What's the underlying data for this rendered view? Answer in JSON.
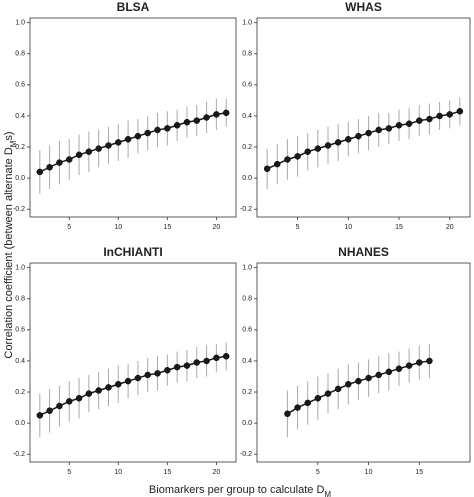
{
  "chart_data": [
    {
      "type": "line",
      "title": "BLSA",
      "x": [
        2,
        3,
        4,
        5,
        6,
        7,
        8,
        9,
        10,
        11,
        12,
        13,
        14,
        15,
        16,
        17,
        18,
        19,
        20,
        21
      ],
      "values": [
        0.04,
        0.07,
        0.1,
        0.12,
        0.15,
        0.17,
        0.19,
        0.21,
        0.23,
        0.25,
        0.27,
        0.29,
        0.31,
        0.32,
        0.34,
        0.36,
        0.37,
        0.39,
        0.41,
        0.42
      ],
      "errors": [
        0.14,
        0.14,
        0.14,
        0.13,
        0.13,
        0.13,
        0.12,
        0.12,
        0.12,
        0.12,
        0.11,
        0.11,
        0.11,
        0.11,
        0.1,
        0.1,
        0.1,
        0.1,
        0.1,
        0.09
      ],
      "color": "#1a1a1a",
      "error_color": "#aaaaaa",
      "xlim": [
        1,
        22
      ],
      "ylim": [
        -0.25,
        1.03
      ],
      "xticks": [
        5,
        10,
        15,
        20
      ],
      "yticks": [
        -0.2,
        {
          "value": 0,
          "label": "0.0"
        },
        0.2,
        0.4,
        0.6,
        0.8,
        {
          "value": 1,
          "label": "1.0"
        }
      ]
    },
    {
      "type": "line",
      "title": "WHAS",
      "x": [
        2,
        3,
        4,
        5,
        6,
        7,
        8,
        9,
        10,
        11,
        12,
        13,
        14,
        15,
        16,
        17,
        18,
        19,
        20,
        21
      ],
      "values": [
        0.06,
        0.09,
        0.12,
        0.14,
        0.17,
        0.19,
        0.21,
        0.23,
        0.25,
        0.27,
        0.29,
        0.31,
        0.32,
        0.34,
        0.35,
        0.37,
        0.38,
        0.4,
        0.41,
        0.43
      ],
      "errors": [
        0.13,
        0.13,
        0.13,
        0.13,
        0.12,
        0.12,
        0.12,
        0.12,
        0.11,
        0.11,
        0.11,
        0.11,
        0.1,
        0.1,
        0.1,
        0.1,
        0.1,
        0.09,
        0.09,
        0.09
      ],
      "color": "#1a1a1a",
      "error_color": "#aaaaaa",
      "xlim": [
        1,
        22
      ],
      "ylim": [
        -0.25,
        1.03
      ],
      "xticks": [
        5,
        10,
        15,
        20
      ],
      "yticks": [
        -0.2,
        {
          "value": 0,
          "label": "0.0"
        },
        0.2,
        0.4,
        0.6,
        0.8,
        {
          "value": 1,
          "label": "1.0"
        }
      ]
    },
    {
      "type": "line",
      "title": "InCHIANTI",
      "x": [
        2,
        3,
        4,
        5,
        6,
        7,
        8,
        9,
        10,
        11,
        12,
        13,
        14,
        15,
        16,
        17,
        18,
        19,
        20,
        21
      ],
      "values": [
        0.05,
        0.08,
        0.11,
        0.14,
        0.16,
        0.19,
        0.21,
        0.23,
        0.25,
        0.27,
        0.29,
        0.31,
        0.32,
        0.34,
        0.36,
        0.37,
        0.39,
        0.4,
        0.42,
        0.43
      ],
      "errors": [
        0.14,
        0.14,
        0.13,
        0.13,
        0.13,
        0.12,
        0.12,
        0.12,
        0.12,
        0.11,
        0.11,
        0.11,
        0.11,
        0.1,
        0.1,
        0.1,
        0.1,
        0.1,
        0.09,
        0.09
      ],
      "color": "#1a1a1a",
      "error_color": "#aaaaaa",
      "xlim": [
        1,
        22
      ],
      "ylim": [
        -0.25,
        1.03
      ],
      "xticks": [
        5,
        10,
        15,
        20
      ],
      "yticks": [
        -0.2,
        {
          "value": 0,
          "label": "0.0"
        },
        0.2,
        0.4,
        0.6,
        0.8,
        {
          "value": 1,
          "label": "1.0"
        }
      ]
    },
    {
      "type": "line",
      "title": "NHANES",
      "x": [
        2,
        3,
        4,
        5,
        6,
        7,
        8,
        9,
        10,
        11,
        12,
        13,
        14,
        15,
        16
      ],
      "values": [
        0.06,
        0.1,
        0.13,
        0.16,
        0.19,
        0.22,
        0.25,
        0.27,
        0.29,
        0.31,
        0.33,
        0.35,
        0.37,
        0.39,
        0.4
      ],
      "errors": [
        0.15,
        0.14,
        0.14,
        0.14,
        0.13,
        0.13,
        0.13,
        0.12,
        0.12,
        0.12,
        0.12,
        0.11,
        0.11,
        0.11,
        0.11
      ],
      "color": "#1a1a1a",
      "error_color": "#aaaaaa",
      "xlim": [
        -1,
        20
      ],
      "ylim": [
        -0.25,
        1.03
      ],
      "xticks": [
        5,
        10,
        15
      ],
      "yticks": [
        -0.2,
        {
          "value": 0,
          "label": "0.0"
        },
        0.2,
        0.4,
        0.6,
        0.8,
        {
          "value": 1,
          "label": "1.0"
        }
      ]
    }
  ],
  "ylabel": [
    "Correlation coefficient (between alternate D",
    "M",
    "s)"
  ],
  "xlabel": [
    "Biomarkers per group to calculate D",
    "M"
  ]
}
